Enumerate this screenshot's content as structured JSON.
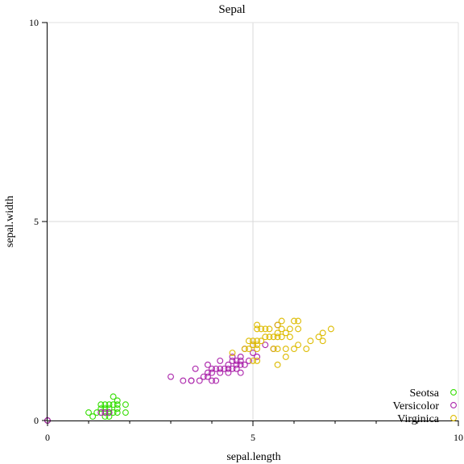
{
  "chart_data": {
    "type": "scatter",
    "title": "Sepal",
    "xlabel": "sepal.length",
    "ylabel": "sepal.width",
    "xlim": [
      0,
      10
    ],
    "ylim": [
      0,
      10
    ],
    "xticks": [
      0,
      5,
      10
    ],
    "yticks": [
      0,
      5,
      10
    ],
    "xtick_labels": [
      "0",
      "5",
      "10"
    ],
    "ytick_labels": [
      "0",
      "5",
      "10"
    ],
    "grid": true,
    "legend": "bottom-right",
    "series": [
      {
        "name": "Seotsa",
        "color": "#33dd00",
        "marker": "open-circle",
        "points": [
          [
            0,
            0
          ],
          [
            1.0,
            0.2
          ],
          [
            1.1,
            0.1
          ],
          [
            1.2,
            0.2
          ],
          [
            1.3,
            0.2
          ],
          [
            1.3,
            0.3
          ],
          [
            1.3,
            0.4
          ],
          [
            1.4,
            0.1
          ],
          [
            1.4,
            0.2
          ],
          [
            1.4,
            0.3
          ],
          [
            1.4,
            0.4
          ],
          [
            1.5,
            0.1
          ],
          [
            1.5,
            0.2
          ],
          [
            1.5,
            0.3
          ],
          [
            1.5,
            0.4
          ],
          [
            1.6,
            0.2
          ],
          [
            1.6,
            0.4
          ],
          [
            1.6,
            0.6
          ],
          [
            1.7,
            0.2
          ],
          [
            1.7,
            0.3
          ],
          [
            1.7,
            0.4
          ],
          [
            1.7,
            0.5
          ],
          [
            1.9,
            0.2
          ],
          [
            1.9,
            0.4
          ],
          [
            1.4,
            0.2
          ],
          [
            1.5,
            0.2
          ]
        ]
      },
      {
        "name": "Versicolor",
        "color": "#aa22aa",
        "marker": "open-circle",
        "points": [
          [
            0,
            0
          ],
          [
            3.0,
            1.1
          ],
          [
            3.3,
            1.0
          ],
          [
            3.5,
            1.0
          ],
          [
            3.5,
            1.0
          ],
          [
            3.6,
            1.3
          ],
          [
            3.7,
            1.0
          ],
          [
            3.8,
            1.1
          ],
          [
            3.9,
            1.1
          ],
          [
            3.9,
            1.2
          ],
          [
            3.9,
            1.4
          ],
          [
            4.0,
            1.0
          ],
          [
            4.0,
            1.2
          ],
          [
            4.0,
            1.3
          ],
          [
            4.1,
            1.0
          ],
          [
            4.1,
            1.3
          ],
          [
            4.2,
            1.2
          ],
          [
            4.2,
            1.3
          ],
          [
            4.2,
            1.5
          ],
          [
            4.3,
            1.3
          ],
          [
            4.4,
            1.2
          ],
          [
            4.4,
            1.3
          ],
          [
            4.4,
            1.4
          ],
          [
            4.5,
            1.3
          ],
          [
            4.5,
            1.5
          ],
          [
            4.5,
            1.6
          ],
          [
            4.6,
            1.3
          ],
          [
            4.6,
            1.4
          ],
          [
            4.6,
            1.5
          ],
          [
            4.7,
            1.2
          ],
          [
            4.7,
            1.4
          ],
          [
            4.7,
            1.5
          ],
          [
            4.7,
            1.6
          ],
          [
            4.8,
            1.4
          ],
          [
            4.8,
            1.8
          ],
          [
            4.9,
            1.5
          ],
          [
            5.0,
            1.7
          ],
          [
            5.1,
            1.6
          ],
          [
            5.0,
            1.9
          ],
          [
            5.6,
            2.4
          ],
          [
            5.5,
            1.8
          ],
          [
            5.3,
            1.9
          ],
          [
            1.3,
            0.2
          ],
          [
            1.4,
            0.2
          ],
          [
            1.5,
            0.2
          ],
          [
            0,
            0
          ]
        ]
      },
      {
        "name": "Virginica",
        "color": "#ddbb00",
        "marker": "open-circle",
        "points": [
          [
            4.5,
            1.7
          ],
          [
            4.8,
            1.8
          ],
          [
            4.9,
            1.8
          ],
          [
            4.9,
            2.0
          ],
          [
            5.0,
            1.5
          ],
          [
            5.0,
            1.9
          ],
          [
            5.0,
            2.0
          ],
          [
            5.1,
            1.5
          ],
          [
            5.1,
            1.8
          ],
          [
            5.1,
            1.9
          ],
          [
            5.1,
            2.0
          ],
          [
            5.1,
            2.3
          ],
          [
            5.1,
            2.4
          ],
          [
            5.2,
            2.0
          ],
          [
            5.2,
            2.3
          ],
          [
            5.3,
            2.3
          ],
          [
            5.4,
            2.1
          ],
          [
            5.4,
            2.3
          ],
          [
            5.5,
            2.1
          ],
          [
            5.5,
            1.8
          ],
          [
            5.6,
            1.4
          ],
          [
            5.6,
            1.8
          ],
          [
            5.6,
            2.1
          ],
          [
            5.6,
            2.2
          ],
          [
            5.6,
            2.4
          ],
          [
            5.7,
            2.1
          ],
          [
            5.7,
            2.3
          ],
          [
            5.7,
            2.5
          ],
          [
            5.8,
            1.6
          ],
          [
            5.8,
            1.8
          ],
          [
            5.8,
            2.2
          ],
          [
            5.9,
            2.1
          ],
          [
            5.9,
            2.3
          ],
          [
            6.0,
            1.8
          ],
          [
            6.0,
            2.5
          ],
          [
            6.1,
            1.9
          ],
          [
            6.1,
            2.3
          ],
          [
            6.1,
            2.5
          ],
          [
            6.3,
            1.8
          ],
          [
            6.4,
            2.0
          ],
          [
            6.6,
            2.1
          ],
          [
            6.7,
            2.0
          ],
          [
            6.7,
            2.2
          ],
          [
            6.9,
            2.3
          ],
          [
            5.3,
            2.1
          ]
        ]
      }
    ]
  }
}
